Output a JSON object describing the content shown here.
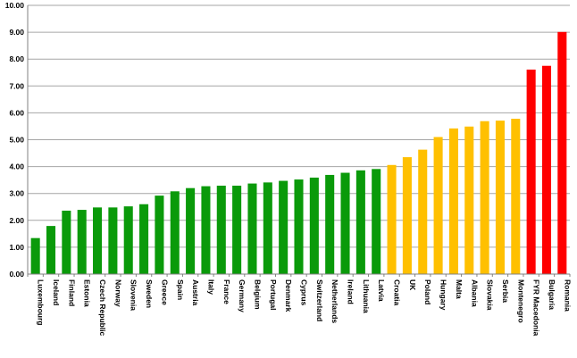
{
  "chart_data": {
    "type": "bar",
    "title": "",
    "xlabel": "",
    "ylabel": "",
    "ylim": [
      0,
      10
    ],
    "yticks": [
      "0.00",
      "1.00",
      "2.00",
      "3.00",
      "4.00",
      "5.00",
      "6.00",
      "7.00",
      "8.00",
      "9.00",
      "10.00"
    ],
    "grid": true,
    "legend": "none",
    "colors": {
      "green": "#0a9a0a",
      "yellow": "#ffc000",
      "red": "#ff0000",
      "grid": "#a6a6a6"
    },
    "categories": [
      "Luxembourg",
      "Iceland",
      "Finland",
      "Estonia",
      "Czech Republic",
      "Norway",
      "Slovenia",
      "Sweden",
      "Greece",
      "Spain",
      "Austria",
      "Italy",
      "France",
      "Germany",
      "Belgium",
      "Portugal",
      "Denmark",
      "Cyprus",
      "Switzerland",
      "Netherlands",
      "Ireland",
      "Lithuania",
      "Latvia",
      "Croatia",
      "UK",
      "Poland",
      "Hungary",
      "Malta",
      "Albania",
      "Slovakia",
      "Serbia",
      "Montenegro",
      "FYR Macedonia",
      "Bulgaria",
      "Romania"
    ],
    "values": [
      1.34,
      1.79,
      2.36,
      2.39,
      2.48,
      2.48,
      2.52,
      2.6,
      2.92,
      3.08,
      3.2,
      3.27,
      3.29,
      3.29,
      3.37,
      3.41,
      3.47,
      3.52,
      3.59,
      3.69,
      3.77,
      3.86,
      3.91,
      4.06,
      4.35,
      4.63,
      5.1,
      5.42,
      5.49,
      5.69,
      5.71,
      5.78,
      7.61,
      7.75,
      9.01
    ],
    "bar_colors": [
      "green",
      "green",
      "green",
      "green",
      "green",
      "green",
      "green",
      "green",
      "green",
      "green",
      "green",
      "green",
      "green",
      "green",
      "green",
      "green",
      "green",
      "green",
      "green",
      "green",
      "green",
      "green",
      "green",
      "yellow",
      "yellow",
      "yellow",
      "yellow",
      "yellow",
      "yellow",
      "yellow",
      "yellow",
      "yellow",
      "red",
      "red",
      "red"
    ]
  }
}
